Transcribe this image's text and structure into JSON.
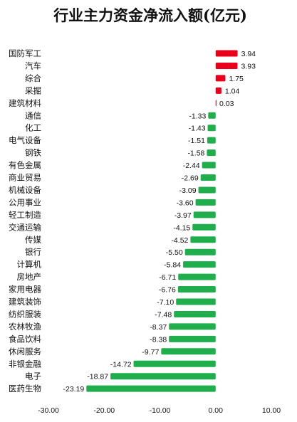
{
  "chart_data": {
    "type": "bar",
    "orientation": "horizontal",
    "title": "行业主力资金净流入额(亿元)",
    "categories": [
      "国防军工",
      "汽车",
      "综合",
      "采掘",
      "建筑材料",
      "通信",
      "化工",
      "电气设备",
      "钢铁",
      "有色金属",
      "商业贸易",
      "机械设备",
      "公用事业",
      "轻工制造",
      "交通运输",
      "传媒",
      "银行",
      "计算机",
      "房地产",
      "家用电器",
      "建筑装饰",
      "纺织服装",
      "农林牧渔",
      "食品饮料",
      "休闲服务",
      "非银金融",
      "电子",
      "医药生物"
    ],
    "values": [
      3.94,
      3.93,
      1.75,
      1.04,
      0.03,
      -1.33,
      -1.43,
      -1.51,
      -1.58,
      -2.44,
      -2.69,
      -3.09,
      -3.6,
      -3.97,
      -4.15,
      -4.52,
      -5.5,
      -5.84,
      -6.71,
      -6.76,
      -7.1,
      -7.48,
      -8.37,
      -8.38,
      -9.77,
      -14.72,
      -18.87,
      -23.19
    ],
    "value_labels": [
      "3.94",
      "3.93",
      "1.75",
      "1.04",
      "0.03",
      "-1.33",
      "-1.43",
      "-1.51",
      "-1.58",
      "-2.44",
      "-2.69",
      "-3.09",
      "-3.60",
      "-3.97",
      "-4.15",
      "-4.52",
      "-5.50",
      "-5.84",
      "-6.71",
      "-6.76",
      "-7.10",
      "-7.48",
      "-8.37",
      "-8.38",
      "-9.77",
      "-14.72",
      "-18.87",
      "-23.19"
    ],
    "xlim": [
      -30,
      10
    ],
    "xticks": [
      "-30.00",
      "-20.00",
      "-10.00",
      "0.00",
      "10.00"
    ],
    "xtick_values": [
      -30,
      -20,
      -10,
      0,
      10
    ],
    "grid": false,
    "colors": {
      "positive": "#e8001c",
      "negative": "#1fae4b"
    }
  }
}
